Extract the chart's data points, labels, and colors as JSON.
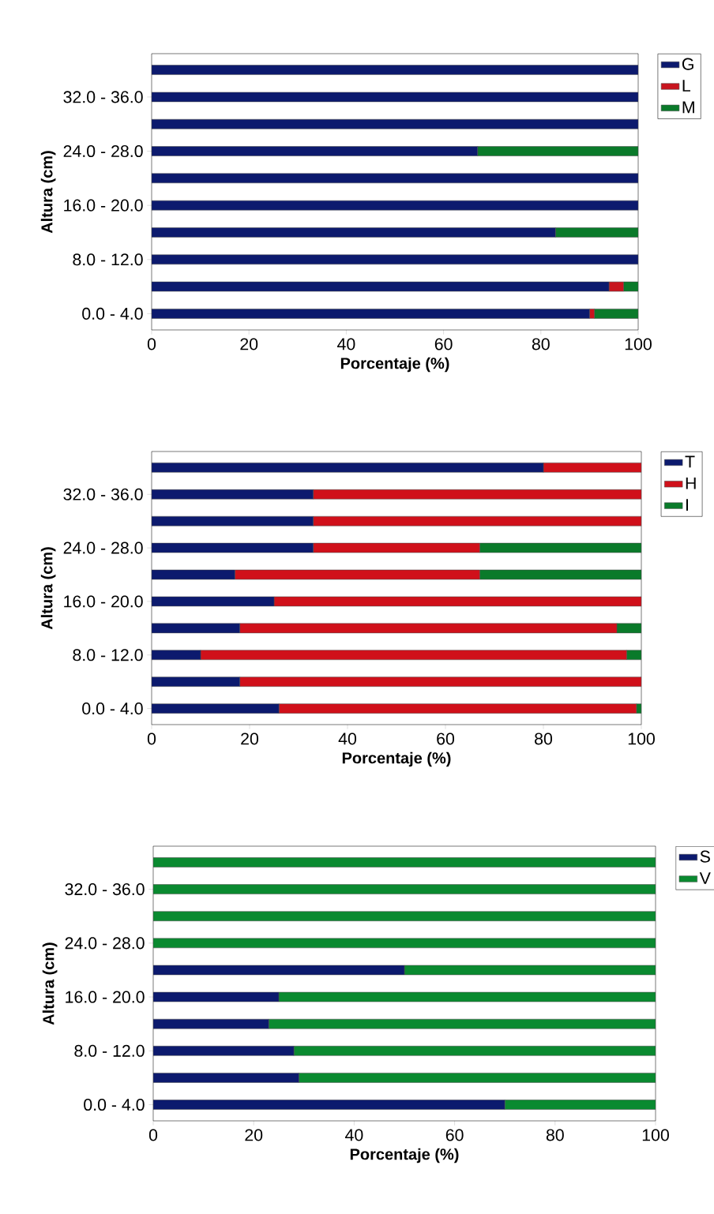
{
  "chart_data": [
    {
      "type": "bar",
      "orientation": "horizontal",
      "stacked": true,
      "xlabel": "Porcentaje (%)",
      "ylabel": "Altura (cm)",
      "legend": "top right",
      "categories": [
        null,
        "32.0 - 36.0",
        null,
        "24.0 - 28.0",
        null,
        "16.0 - 20.0",
        null,
        "8.0 - 12.0",
        null,
        "0.0 - 4.0"
      ],
      "xlim": [
        0,
        100
      ],
      "xticks": [
        0,
        20,
        40,
        60,
        80,
        100
      ],
      "series": [
        {
          "name": "G",
          "color": "#0c1a6e",
          "values": [
            100,
            100,
            100,
            67,
            100,
            100,
            83,
            100,
            94,
            90
          ]
        },
        {
          "name": "L",
          "color": "#c8141e",
          "values": [
            0,
            0,
            0,
            0,
            0,
            0,
            0,
            0,
            3,
            1
          ]
        },
        {
          "name": "M",
          "color": "#0a7a2a",
          "values": [
            0,
            0,
            0,
            33,
            0,
            0,
            17,
            0,
            3,
            9
          ]
        }
      ]
    },
    {
      "type": "bar",
      "orientation": "horizontal",
      "stacked": true,
      "xlabel": "Porcentaje (%)",
      "ylabel": "Altura (cm)",
      "legend": "top right",
      "categories": [
        null,
        "32.0 - 36.0",
        null,
        "24.0 - 28.0",
        null,
        "16.0 - 20.0",
        null,
        "8.0 - 12.0",
        null,
        "0.0 - 4.0"
      ],
      "xlim": [
        0,
        100
      ],
      "xticks": [
        0,
        20,
        40,
        60,
        80,
        100
      ],
      "series": [
        {
          "name": "T",
          "color": "#0c1a6e",
          "values": [
            80,
            33,
            33,
            33,
            17,
            25,
            18,
            10,
            18,
            26
          ]
        },
        {
          "name": "H",
          "color": "#d0101a",
          "values": [
            20,
            67,
            67,
            34,
            50,
            75,
            77,
            87,
            82,
            73
          ]
        },
        {
          "name": "I",
          "color": "#0a7a2a",
          "values": [
            0,
            0,
            0,
            33,
            33,
            0,
            5,
            3,
            0,
            1
          ]
        }
      ]
    },
    {
      "type": "bar",
      "orientation": "horizontal",
      "stacked": true,
      "xlabel": "Porcentaje (%)",
      "ylabel": "Altura (cm)",
      "legend": "top right",
      "categories": [
        null,
        "32.0 - 36.0",
        null,
        "24.0 - 28.0",
        null,
        "16.0 - 20.0",
        null,
        "8.0 - 12.0",
        null,
        "0.0 - 4.0"
      ],
      "xlim": [
        0,
        100
      ],
      "xticks": [
        0,
        20,
        40,
        60,
        80,
        100
      ],
      "series": [
        {
          "name": "S",
          "color": "#0c1a6e",
          "values": [
            0,
            0,
            0,
            0,
            50,
            25,
            23,
            28,
            29,
            70
          ]
        },
        {
          "name": "V",
          "color": "#0a8a30",
          "values": [
            100,
            100,
            100,
            100,
            50,
            75,
            77,
            72,
            71,
            30
          ]
        }
      ]
    }
  ]
}
